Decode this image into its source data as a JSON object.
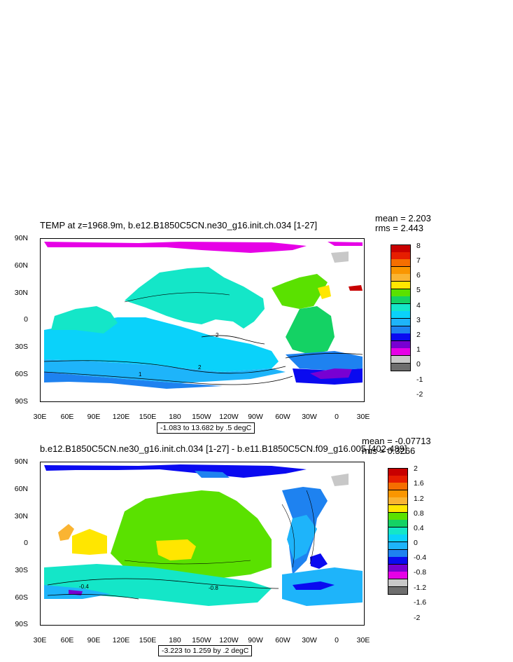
{
  "chart_data": [
    {
      "type": "heatmap",
      "title": "TEMP at z=1968.9m, b.e12.B1850C5CN.ne30_g16.init.ch.034 [1-27]",
      "mean": "mean = 2.203",
      "rms": "rms = 2.443",
      "range_note": "-1.083 to 13.682 by .5 degC",
      "x_ticks": [
        "30E",
        "60E",
        "90E",
        "120E",
        "150E",
        "180",
        "150W",
        "120W",
        "90W",
        "60W",
        "30W",
        "0",
        "30E"
      ],
      "y_ticks": [
        "90N",
        "60N",
        "30N",
        "0",
        "30S",
        "60S",
        "90S"
      ],
      "colorbar_labels": [
        "8",
        "7",
        "6",
        "5",
        "4",
        "3",
        "2",
        "1",
        "0",
        "-1",
        "-2"
      ],
      "colorbar_colors": [
        "#C80000",
        "#E61E00",
        "#F56E00",
        "#FA9600",
        "#FAB432",
        "#FFE600",
        "#5AE100",
        "#14D264",
        "#14E6C8",
        "#0AD2FA",
        "#1EB4FA",
        "#1E82F0",
        "#0A0AF0",
        "#7800D2",
        "#E600E6",
        "#C8C8C8",
        "#6E6E6E"
      ],
      "contour_labels": [
        "2",
        "2",
        "1"
      ]
    },
    {
      "type": "heatmap",
      "title": "b.e12.B1850C5CN.ne30_g16.init.ch.034 [1-27] - b.e11.B1850C5CN.f09_g16.005 [402-489]",
      "mean": "mean = -0.07713",
      "rms": "rms = 0.3266",
      "range_note": "-3.223 to 1.259 by .2 degC",
      "x_ticks": [
        "30E",
        "60E",
        "90E",
        "120E",
        "150E",
        "180",
        "150W",
        "120W",
        "90W",
        "60W",
        "30W",
        "0",
        "30E"
      ],
      "y_ticks": [
        "90N",
        "60N",
        "30N",
        "0",
        "30S",
        "60S",
        "90S"
      ],
      "colorbar_labels": [
        "2",
        "1.6",
        "1.2",
        "0.8",
        "0.4",
        "0",
        "-0.4",
        "-0.8",
        "-1.2",
        "-1.6",
        "-2"
      ],
      "colorbar_colors": [
        "#C80000",
        "#E61E00",
        "#F56E00",
        "#FA9600",
        "#FAB432",
        "#FFE600",
        "#5AE100",
        "#14D264",
        "#14E6C8",
        "#0AD2FA",
        "#1EB4FA",
        "#1E82F0",
        "#0A0AF0",
        "#7800D2",
        "#E600E6",
        "#C8C8C8",
        "#6E6E6E"
      ],
      "contour_labels": [
        "-0.4",
        "-0.8"
      ]
    }
  ]
}
